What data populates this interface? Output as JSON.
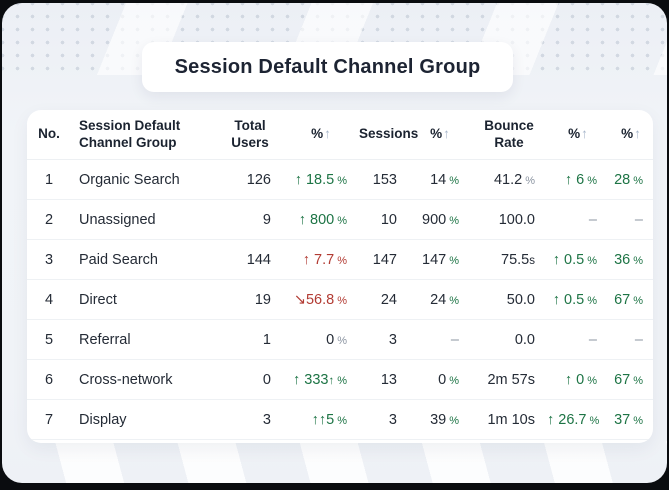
{
  "page": {
    "title": "Session Default Channel Group"
  },
  "colors": {
    "positive": "#1d7445",
    "negative": "#b23b33",
    "muted": "#8b94a1",
    "text": "#242b36",
    "header_arrow": "#a9b8cc",
    "card_bg": "#ffffff",
    "canvas_bg": "#f0f3f7",
    "page_bg": "#0a0c0f"
  },
  "table": {
    "col_names": [
      "no",
      "channel-group",
      "total-users",
      "users-change",
      "sessions",
      "sessions-change",
      "bounce-rate",
      "bounce-change",
      "extra-change"
    ],
    "headers": [
      {
        "segs": [
          {
            "t": "No."
          }
        ]
      },
      {
        "segs": [
          {
            "t": "Session Default Channel Group"
          }
        ]
      },
      {
        "segs": [
          {
            "t": "Total Users"
          }
        ]
      },
      {
        "sortable": true,
        "segs": [
          {
            "t": "%"
          },
          {
            "t": "↑",
            "c": "arrow",
            "n": "sort-up-arrow-icon"
          }
        ]
      },
      {
        "segs": [
          {
            "t": "Sessions"
          }
        ]
      },
      {
        "sortable": true,
        "segs": [
          {
            "t": "%"
          },
          {
            "t": "↑",
            "c": "arrow",
            "n": "sort-up-arrow-icon"
          }
        ]
      },
      {
        "segs": [
          {
            "t": "Bounce Rate"
          }
        ]
      },
      {
        "sortable": true,
        "segs": [
          {
            "t": "%"
          },
          {
            "t": "↑",
            "c": "arrow",
            "n": "sort-up-arrow-icon"
          }
        ]
      },
      {
        "sortable": true,
        "segs": [
          {
            "t": "%"
          },
          {
            "t": "↑",
            "c": "arrow",
            "n": "sort-up-arrow-icon"
          }
        ]
      }
    ],
    "rows": [
      [
        [
          {
            "t": "1"
          }
        ],
        [
          {
            "t": "Organic Search"
          }
        ],
        [
          {
            "t": "126"
          }
        ],
        [
          {
            "t": "↑ 18.5",
            "c": "green"
          },
          {
            "t": "%",
            "c": "green pct"
          }
        ],
        [
          {
            "t": "153"
          }
        ],
        [
          {
            "t": "14"
          },
          {
            "t": "%",
            "c": "green pct"
          }
        ],
        [
          {
            "t": "41.2"
          },
          {
            "t": "%",
            "c": "gray pct"
          }
        ],
        [
          {
            "t": "↑ 6",
            "c": "green"
          },
          {
            "t": "%",
            "c": "green pct"
          }
        ],
        [
          {
            "t": "28",
            "c": "green"
          },
          {
            "t": "%",
            "c": "green pct"
          }
        ]
      ],
      [
        [
          {
            "t": "2"
          }
        ],
        [
          {
            "t": "Unassigned"
          }
        ],
        [
          {
            "t": "9"
          }
        ],
        [
          {
            "t": "↑ 800",
            "c": "green"
          },
          {
            "t": "%",
            "c": "green pct"
          }
        ],
        [
          {
            "t": "10"
          }
        ],
        [
          {
            "t": "900"
          },
          {
            "t": "%",
            "c": "green pct"
          }
        ],
        [
          {
            "t": "100.0"
          }
        ],
        [
          {
            "t": "–",
            "c": "gray"
          }
        ],
        [
          {
            "t": "–",
            "c": "gray"
          }
        ]
      ],
      [
        [
          {
            "t": "3"
          }
        ],
        [
          {
            "t": "Paid Search"
          }
        ],
        [
          {
            "t": "144"
          }
        ],
        [
          {
            "t": "↑ 7.7",
            "c": "red"
          },
          {
            "t": "%",
            "c": "red pct"
          }
        ],
        [
          {
            "t": "147"
          }
        ],
        [
          {
            "t": "147"
          },
          {
            "t": "%",
            "c": "green pct"
          }
        ],
        [
          {
            "t": "75.5"
          },
          {
            "t": "s",
            "c": "sm"
          }
        ],
        [
          {
            "t": "↑ 0.5",
            "c": "green"
          },
          {
            "t": "%",
            "c": "green pct"
          }
        ],
        [
          {
            "t": "36",
            "c": "green"
          },
          {
            "t": "%",
            "c": "green pct"
          }
        ]
      ],
      [
        [
          {
            "t": "4"
          }
        ],
        [
          {
            "t": "Direct"
          }
        ],
        [
          {
            "t": "19"
          }
        ],
        [
          {
            "t": "↘56.8",
            "c": "red"
          },
          {
            "t": "%",
            "c": "red pct"
          }
        ],
        [
          {
            "t": "24"
          }
        ],
        [
          {
            "t": "24"
          },
          {
            "t": "%",
            "c": "green pct"
          }
        ],
        [
          {
            "t": "50.0"
          }
        ],
        [
          {
            "t": "↑ 0.5",
            "c": "green"
          },
          {
            "t": "%",
            "c": "green pct"
          }
        ],
        [
          {
            "t": "67",
            "c": "green"
          },
          {
            "t": "%",
            "c": "green pct"
          }
        ]
      ],
      [
        [
          {
            "t": "5"
          }
        ],
        [
          {
            "t": "Referral"
          }
        ],
        [
          {
            "t": "1"
          }
        ],
        [
          {
            "t": "0"
          },
          {
            "t": "%",
            "c": "gray pct"
          }
        ],
        [
          {
            "t": "3"
          }
        ],
        [
          {
            "t": "–",
            "c": "gray"
          }
        ],
        [
          {
            "t": "0.0"
          }
        ],
        [
          {
            "t": "–",
            "c": "gray"
          }
        ],
        [
          {
            "t": "–",
            "c": "gray"
          }
        ]
      ],
      [
        [
          {
            "t": "6"
          }
        ],
        [
          {
            "t": "Cross-network"
          }
        ],
        [
          {
            "t": "0"
          }
        ],
        [
          {
            "t": "↑ 333",
            "c": "green"
          },
          {
            "t": "↑",
            "c": "green sm"
          },
          {
            "t": "%",
            "c": "green pct"
          }
        ],
        [
          {
            "t": "13"
          }
        ],
        [
          {
            "t": "0"
          },
          {
            "t": "%",
            "c": "green pct"
          }
        ],
        [
          {
            "t": "2m 57s"
          }
        ],
        [
          {
            "t": "↑ 0",
            "c": "green"
          },
          {
            "t": "%",
            "c": "green pct"
          }
        ],
        [
          {
            "t": "67",
            "c": "green"
          },
          {
            "t": "%",
            "c": "green pct"
          }
        ]
      ],
      [
        [
          {
            "t": "7"
          }
        ],
        [
          {
            "t": "Display"
          }
        ],
        [
          {
            "t": "3"
          }
        ],
        [
          {
            "t": "↑↑5",
            "c": "green"
          },
          {
            "t": "%",
            "c": "green pct"
          }
        ],
        [
          {
            "t": "3"
          }
        ],
        [
          {
            "t": "39"
          },
          {
            "t": "%",
            "c": "green pct"
          }
        ],
        [
          {
            "t": "1m 10s"
          }
        ],
        [
          {
            "t": "↑ 26.7",
            "c": "green"
          },
          {
            "t": "%",
            "c": "green pct"
          }
        ],
        [
          {
            "t": "37",
            "c": "green"
          },
          {
            "t": "%",
            "c": "green pct"
          }
        ]
      ]
    ]
  }
}
